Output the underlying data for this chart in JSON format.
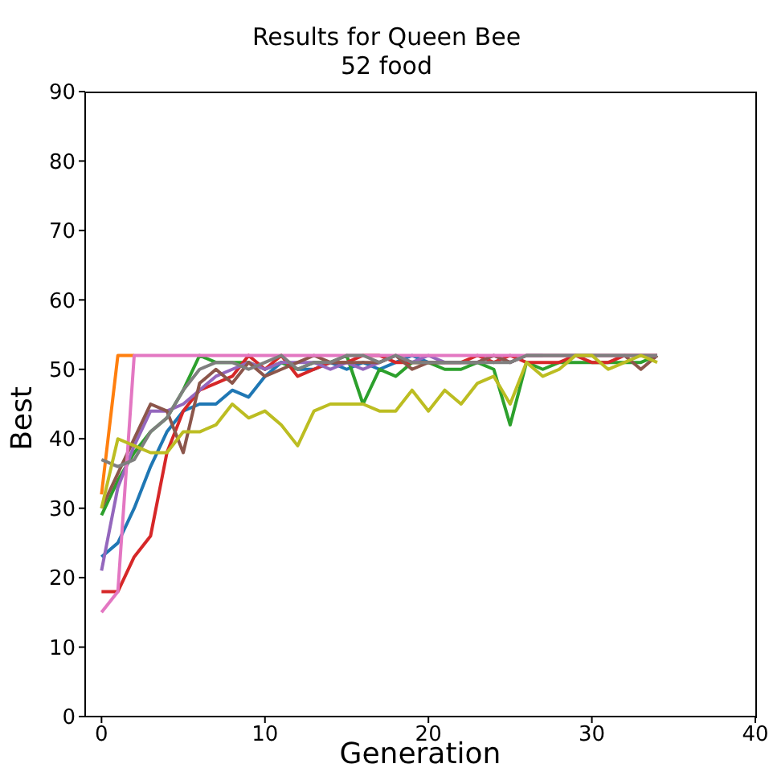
{
  "chart_data": {
    "type": "line",
    "title": "Results for Queen Bee",
    "subtitle": "52 food",
    "xlabel": "Generation",
    "ylabel": "Best",
    "x": [
      0,
      1,
      2,
      3,
      4,
      5,
      6,
      7,
      8,
      9,
      10,
      11,
      12,
      13,
      14,
      15,
      16,
      17,
      18,
      19,
      20,
      21,
      22,
      23,
      24,
      25,
      26,
      27,
      28,
      29,
      30,
      31,
      32,
      33,
      34
    ],
    "xlim": [
      -1,
      40
    ],
    "xticks": [
      0,
      10,
      20,
      30,
      40
    ],
    "ylim": [
      0,
      90
    ],
    "yticks": [
      0,
      10,
      20,
      30,
      40,
      50,
      60,
      70,
      80,
      90
    ],
    "grid": false,
    "marker": "none",
    "line_style": "solid",
    "series": [
      {
        "color": "#1f77b4",
        "values": [
          23,
          25,
          30,
          36,
          41,
          44,
          45,
          45,
          47,
          46,
          49,
          51,
          50,
          50,
          51,
          50,
          51,
          50,
          51,
          52,
          51,
          51,
          null,
          null,
          null,
          null,
          null,
          null,
          null,
          null,
          null,
          null,
          null,
          null,
          null
        ]
      },
      {
        "color": "#ff7f0e",
        "values": [
          32,
          52,
          52,
          null,
          null,
          null,
          null,
          null,
          null,
          null,
          null,
          null,
          null,
          null,
          null,
          null,
          null,
          null,
          null,
          null,
          null,
          null,
          null,
          null,
          null,
          null,
          null,
          null,
          null,
          null,
          null,
          null,
          null,
          null,
          null
        ]
      },
      {
        "color": "#2ca02c",
        "values": [
          29,
          34,
          38,
          41,
          43,
          47,
          52,
          51,
          51,
          51,
          50,
          51,
          50,
          51,
          51,
          52,
          45,
          50,
          49,
          51,
          51,
          50,
          50,
          51,
          50,
          42,
          51,
          50,
          51,
          51,
          51,
          51,
          51,
          51,
          52
        ]
      },
      {
        "color": "#d62728",
        "values": [
          18,
          18,
          23,
          26,
          38,
          44,
          47,
          48,
          49,
          52,
          50,
          52,
          49,
          50,
          51,
          51,
          52,
          52,
          51,
          51,
          51,
          51,
          51,
          52,
          51,
          52,
          51,
          51,
          51,
          52,
          51,
          51,
          52,
          52,
          52
        ]
      },
      {
        "color": "#9467bd",
        "values": [
          21,
          33,
          39,
          44,
          44,
          45,
          47,
          49,
          50,
          51,
          50,
          51,
          51,
          51,
          50,
          51,
          50,
          51,
          52,
          51,
          52,
          51,
          51,
          51,
          52,
          51,
          52,
          52,
          null,
          null,
          null,
          null,
          null,
          null,
          null
        ]
      },
      {
        "color": "#8c564b",
        "values": [
          30,
          35,
          40,
          45,
          44,
          38,
          48,
          50,
          48,
          51,
          49,
          50,
          51,
          52,
          51,
          51,
          51,
          51,
          52,
          50,
          51,
          51,
          51,
          51,
          52,
          51,
          52,
          52,
          52,
          52,
          52,
          52,
          52,
          50,
          52
        ]
      },
      {
        "color": "#e377c2",
        "values": [
          15,
          18,
          52,
          52,
          52,
          52,
          52,
          52,
          52,
          52,
          52,
          52,
          52,
          52,
          52,
          52,
          52,
          52,
          52,
          52,
          52,
          52,
          52,
          52,
          52,
          52,
          52,
          52,
          52,
          52,
          52,
          52,
          52,
          52,
          52
        ]
      },
      {
        "color": "#7f7f7f",
        "values": [
          37,
          36,
          37,
          41,
          43,
          47,
          50,
          51,
          51,
          50,
          51,
          52,
          50,
          51,
          51,
          52,
          52,
          51,
          52,
          51,
          51,
          51,
          51,
          51,
          51,
          51,
          52,
          52,
          52,
          52,
          52,
          52,
          52,
          52,
          52
        ]
      },
      {
        "color": "#bcbd22",
        "values": [
          30,
          40,
          39,
          38,
          38,
          41,
          41,
          42,
          45,
          43,
          44,
          42,
          39,
          44,
          45,
          45,
          45,
          44,
          44,
          47,
          44,
          47,
          45,
          48,
          49,
          45,
          51,
          49,
          50,
          52,
          52,
          50,
          51,
          52,
          51
        ]
      }
    ]
  }
}
